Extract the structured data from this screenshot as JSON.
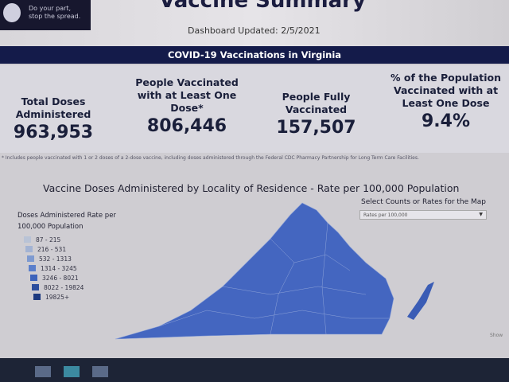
{
  "header": {
    "logo_line1": "Do your part,",
    "logo_line2": "stop the spread.",
    "title": "Vaccine Summary",
    "updated": "Dashboard Updated: 2/5/2021"
  },
  "banner": "COVID-19 Vaccinations in Virginia",
  "stats": [
    {
      "label": "Total Doses Administered",
      "value": "963,953"
    },
    {
      "label": "People Vaccinated with at Least One Dose*",
      "value": "806,446"
    },
    {
      "label": "People Fully Vaccinated",
      "value": "157,507"
    },
    {
      "label": "% of the Population Vaccinated with at Least One Dose",
      "value": "9.4%"
    }
  ],
  "footnote": "* Includes people vaccinated with 1 or 2 doses of a 2-dose vaccine, including doses administered through the Federal CDC Pharmacy Partnership for Long Term Care Facilities.",
  "map": {
    "title": "Vaccine Doses Administered by Locality of Residence - Rate per 100,000 Population",
    "legend_title": "Doses Administered Rate per 100,000 Population",
    "legend": [
      {
        "label": "87 - 215",
        "color": "#b9c3d6"
      },
      {
        "label": "216 - 531",
        "color": "#a3b3d3"
      },
      {
        "label": "532 - 1313",
        "color": "#7e9ad0"
      },
      {
        "label": "1314 - 3245",
        "color": "#5b7fcb"
      },
      {
        "label": "3246 - 8021",
        "color": "#3d63bb"
      },
      {
        "label": "8022 - 19824",
        "color": "#2b4d9e"
      },
      {
        "label": "19825+",
        "color": "#1d3a80"
      }
    ],
    "select_label": "Select Counts or Rates for the Map",
    "select_value": "Rates per 100,000",
    "show_link": "Show"
  }
}
